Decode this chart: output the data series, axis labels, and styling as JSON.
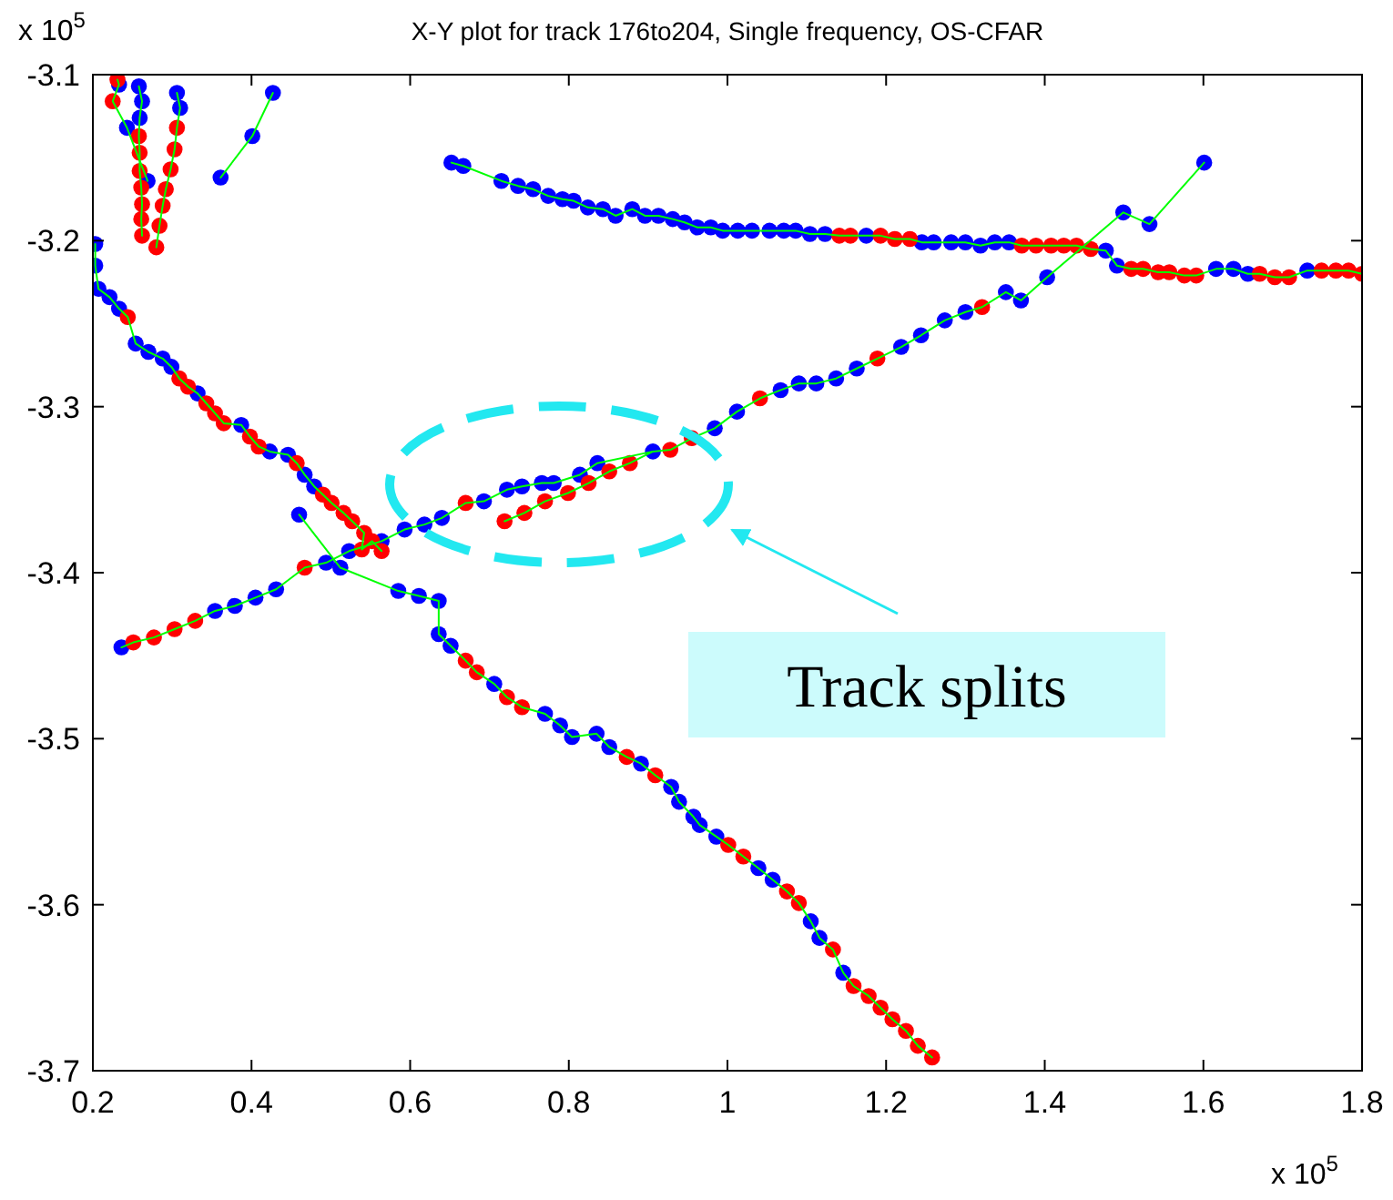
{
  "chart_data": {
    "type": "line",
    "title": "X-Y plot for track 176to204, Single frequency, OS-CFAR",
    "xlim": [
      0.2,
      1.8
    ],
    "xticks": [
      0.2,
      0.4,
      0.6,
      0.8,
      1,
      1.2,
      1.4,
      1.6,
      1.8
    ],
    "ylim": [
      -3.7,
      -3.1
    ],
    "yticks": [
      -3.7,
      -3.6,
      -3.5,
      -3.4,
      -3.3,
      -3.2,
      -3.1
    ],
    "grid": false,
    "marker": "none",
    "line_style": "solid",
    "annotations": [
      "x 10$^{5}$",
      "x 10$^{5}$",
      "Track splits"
    ],
    "series": [
      {
        "color": "#00ff00",
        "x": [
          0.231,
          0.233,
          0.225,
          0.243,
          0.269
        ],
        "values": [
          -3.103,
          -3.106,
          -3.116,
          -3.132,
          -3.164
        ]
      },
      {
        "color": "#00ff00",
        "x": [
          0.258,
          0.262,
          0.259,
          0.258,
          0.259,
          0.259,
          0.261,
          0.262,
          0.261,
          0.262
        ],
        "values": [
          -3.107,
          -3.116,
          -3.126,
          -3.137,
          -3.147,
          -3.158,
          -3.168,
          -3.178,
          -3.187,
          -3.197
        ]
      },
      {
        "color": "#00ff00",
        "x": [
          0.306,
          0.31,
          0.306,
          0.303,
          0.298,
          0.292,
          0.288,
          0.284,
          0.28
        ],
        "values": [
          -3.111,
          -3.12,
          -3.132,
          -3.145,
          -3.157,
          -3.169,
          -3.179,
          -3.191,
          -3.204
        ]
      },
      {
        "color": "#00ff00",
        "x": [
          0.427,
          0.401,
          0.361
        ],
        "values": [
          -3.111,
          -3.137,
          -3.162
        ]
      },
      {
        "color": "#00ff00",
        "x": [
          0.652,
          0.667,
          0.715,
          0.736,
          0.755,
          0.774,
          0.792,
          0.806,
          0.824,
          0.843,
          0.859,
          0.88,
          0.896,
          0.913,
          0.931,
          0.946,
          0.962,
          0.979,
          0.994,
          1.013,
          1.031,
          1.053,
          1.071,
          1.086,
          1.104,
          1.123,
          1.141,
          1.155,
          1.175,
          1.193,
          1.211,
          1.23,
          1.245,
          1.26,
          1.282,
          1.3,
          1.319,
          1.337,
          1.355,
          1.371,
          1.389,
          1.408,
          1.424,
          1.44,
          1.458,
          1.477,
          1.491,
          1.509,
          1.524,
          1.543,
          1.557,
          1.576,
          1.591,
          1.616,
          1.638,
          1.656,
          1.671,
          1.69,
          1.708,
          1.731,
          1.749,
          1.767,
          1.783,
          1.8
        ],
        "values": [
          -3.153,
          -3.155,
          -3.164,
          -3.167,
          -3.169,
          -3.173,
          -3.175,
          -3.176,
          -3.18,
          -3.181,
          -3.185,
          -3.181,
          -3.185,
          -3.185,
          -3.187,
          -3.189,
          -3.192,
          -3.192,
          -3.194,
          -3.194,
          -3.194,
          -3.194,
          -3.194,
          -3.194,
          -3.196,
          -3.196,
          -3.197,
          -3.197,
          -3.197,
          -3.197,
          -3.199,
          -3.199,
          -3.201,
          -3.201,
          -3.201,
          -3.201,
          -3.203,
          -3.201,
          -3.201,
          -3.203,
          -3.203,
          -3.203,
          -3.203,
          -3.203,
          -3.205,
          -3.206,
          -3.215,
          -3.217,
          -3.217,
          -3.219,
          -3.219,
          -3.221,
          -3.221,
          -3.217,
          -3.217,
          -3.22,
          -3.22,
          -3.222,
          -3.222,
          -3.218,
          -3.218,
          -3.218,
          -3.218,
          -3.22
        ]
      },
      {
        "color": "#00ff00",
        "x": [
          0.236,
          0.251,
          0.277,
          0.303,
          0.329,
          0.354,
          0.379,
          0.405,
          0.431,
          0.467,
          0.494,
          0.523,
          0.564,
          0.593,
          0.618,
          0.64,
          0.67,
          0.693,
          0.722,
          0.741,
          0.766,
          0.781,
          0.814,
          0.836,
          0.906,
          0.928,
          0.955,
          0.984,
          1.012,
          1.041,
          1.067,
          1.09,
          1.112,
          1.137,
          1.163,
          1.189,
          1.219,
          1.244,
          1.274,
          1.3,
          1.321,
          1.351,
          1.37,
          1.403,
          1.499,
          1.532,
          1.601
        ],
        "values": [
          -3.445,
          -3.442,
          -3.439,
          -3.434,
          -3.429,
          -3.423,
          -3.42,
          -3.415,
          -3.41,
          -3.397,
          -3.394,
          -3.387,
          -3.381,
          -3.374,
          -3.371,
          -3.367,
          -3.358,
          -3.357,
          -3.35,
          -3.348,
          -3.346,
          -3.346,
          -3.341,
          -3.334,
          -3.327,
          -3.326,
          -3.319,
          -3.313,
          -3.303,
          -3.295,
          -3.29,
          -3.286,
          -3.286,
          -3.283,
          -3.277,
          -3.271,
          -3.264,
          -3.257,
          -3.248,
          -3.243,
          -3.24,
          -3.231,
          -3.236,
          -3.222,
          -3.183,
          -3.19,
          -3.153
        ]
      },
      {
        "color": "#00ff00",
        "x": [
          0.719,
          0.744,
          0.77,
          0.799,
          0.825,
          0.851,
          0.877,
          0.906
        ],
        "values": [
          -3.369,
          -3.364,
          -3.357,
          -3.352,
          -3.346,
          -3.339,
          -3.334,
          -3.327
        ]
      },
      {
        "color": "#00ff00",
        "x": [
          0.203,
          0.203,
          0.207,
          0.221,
          0.233,
          0.244,
          0.254,
          0.27,
          0.288,
          0.299,
          0.309,
          0.32,
          0.332,
          0.343,
          0.354,
          0.365,
          0.387,
          0.398,
          0.409,
          0.423,
          0.446,
          0.457,
          0.467,
          0.479,
          0.49,
          0.501,
          0.516,
          0.527,
          0.542,
          0.539,
          0.552,
          0.564
        ],
        "values": [
          -3.202,
          -3.215,
          -3.229,
          -3.234,
          -3.241,
          -3.246,
          -3.262,
          -3.267,
          -3.271,
          -3.276,
          -3.283,
          -3.288,
          -3.292,
          -3.298,
          -3.304,
          -3.31,
          -3.311,
          -3.318,
          -3.324,
          -3.327,
          -3.329,
          -3.334,
          -3.341,
          -3.348,
          -3.353,
          -3.358,
          -3.364,
          -3.369,
          -3.376,
          -3.386,
          -3.381,
          -3.387
        ]
      },
      {
        "color": "#00ff00",
        "x": [
          0.46,
          0.512,
          0.585,
          0.611,
          0.636,
          0.636,
          0.651,
          0.67,
          0.684,
          0.706,
          0.722,
          0.741,
          0.77,
          0.789,
          0.804,
          0.835,
          0.851,
          0.873,
          0.891,
          0.909,
          0.929,
          0.939,
          0.957,
          0.965,
          0.986,
          1.001,
          1.02,
          1.039,
          1.057,
          1.075,
          1.09,
          1.105,
          1.116,
          1.133,
          1.146,
          1.159,
          1.178,
          1.193,
          1.208,
          1.225,
          1.24,
          1.258
        ],
        "values": [
          -3.365,
          -3.397,
          -3.411,
          -3.414,
          -3.417,
          -3.437,
          -3.444,
          -3.453,
          -3.46,
          -3.467,
          -3.475,
          -3.481,
          -3.485,
          -3.492,
          -3.499,
          -3.497,
          -3.505,
          -3.511,
          -3.515,
          -3.522,
          -3.529,
          -3.538,
          -3.547,
          -3.552,
          -3.559,
          -3.564,
          -3.571,
          -3.578,
          -3.585,
          -3.592,
          -3.599,
          -3.61,
          -3.62,
          -3.627,
          -3.641,
          -3.649,
          -3.655,
          -3.662,
          -3.669,
          -3.676,
          -3.685,
          -3.692
        ]
      },
      {
        "type": "scatter",
        "marker": "circle",
        "color": "#0000ff",
        "x": [
          0.233,
          0.243,
          0.269,
          0.258,
          0.262,
          0.259,
          0.306,
          0.31,
          0.427,
          0.401,
          0.361,
          0.652,
          0.667,
          0.715,
          0.736,
          0.755,
          0.774,
          0.792,
          0.806,
          0.824,
          0.843,
          0.859,
          0.88,
          0.896,
          0.913,
          0.931,
          0.946,
          0.962,
          0.979,
          0.994,
          1.013,
          1.031,
          1.053,
          1.071,
          1.086,
          1.104,
          1.123,
          1.175,
          1.245,
          1.26,
          1.282,
          1.3,
          1.319,
          1.337,
          1.355,
          1.477,
          1.491,
          1.616,
          1.638,
          1.656,
          1.731,
          0.236,
          0.354,
          0.379,
          0.405,
          0.431,
          0.494,
          0.523,
          0.564,
          0.593,
          0.618,
          0.64,
          0.693,
          0.722,
          0.741,
          0.766,
          0.781,
          0.814,
          0.836,
          0.906,
          0.984,
          1.012,
          1.067,
          1.09,
          1.112,
          1.137,
          1.163,
          1.219,
          1.244,
          1.274,
          1.3,
          1.351,
          1.37,
          1.403,
          1.499,
          1.532,
          1.601,
          0.203,
          0.203,
          0.207,
          0.221,
          0.233,
          0.254,
          0.27,
          0.288,
          0.299,
          0.332,
          0.387,
          0.423,
          0.446,
          0.467,
          0.479,
          0.46,
          0.512,
          0.585,
          0.611,
          0.636,
          0.636,
          0.651,
          0.706,
          0.77,
          0.789,
          0.804,
          0.835,
          0.851,
          0.891,
          0.929,
          0.939,
          0.957,
          0.965,
          0.986,
          1.039,
          1.057,
          1.105,
          1.116,
          1.146
        ],
        "values": [
          -3.106,
          -3.132,
          -3.164,
          -3.107,
          -3.116,
          -3.126,
          -3.111,
          -3.12,
          -3.111,
          -3.137,
          -3.162,
          -3.153,
          -3.155,
          -3.164,
          -3.167,
          -3.169,
          -3.173,
          -3.175,
          -3.176,
          -3.18,
          -3.181,
          -3.185,
          -3.181,
          -3.185,
          -3.185,
          -3.187,
          -3.189,
          -3.192,
          -3.192,
          -3.194,
          -3.194,
          -3.194,
          -3.194,
          -3.194,
          -3.194,
          -3.196,
          -3.196,
          -3.197,
          -3.201,
          -3.201,
          -3.201,
          -3.201,
          -3.203,
          -3.201,
          -3.201,
          -3.206,
          -3.215,
          -3.217,
          -3.217,
          -3.22,
          -3.218,
          -3.445,
          -3.423,
          -3.42,
          -3.415,
          -3.41,
          -3.394,
          -3.387,
          -3.381,
          -3.374,
          -3.371,
          -3.367,
          -3.357,
          -3.35,
          -3.348,
          -3.346,
          -3.346,
          -3.341,
          -3.334,
          -3.327,
          -3.313,
          -3.303,
          -3.29,
          -3.286,
          -3.286,
          -3.283,
          -3.277,
          -3.264,
          -3.257,
          -3.248,
          -3.243,
          -3.231,
          -3.236,
          -3.222,
          -3.183,
          -3.19,
          -3.153,
          -3.202,
          -3.215,
          -3.229,
          -3.234,
          -3.241,
          -3.262,
          -3.267,
          -3.271,
          -3.276,
          -3.292,
          -3.311,
          -3.327,
          -3.329,
          -3.341,
          -3.348,
          -3.365,
          -3.397,
          -3.411,
          -3.414,
          -3.417,
          -3.437,
          -3.444,
          -3.467,
          -3.485,
          -3.492,
          -3.499,
          -3.497,
          -3.505,
          -3.515,
          -3.529,
          -3.538,
          -3.547,
          -3.552,
          -3.559,
          -3.578,
          -3.585,
          -3.61,
          -3.62,
          -3.641
        ]
      },
      {
        "type": "scatter",
        "marker": "circle",
        "color": "#ff0000",
        "x": [
          0.231,
          0.225,
          0.258,
          0.259,
          0.259,
          0.261,
          0.262,
          0.261,
          0.262,
          0.306,
          0.303,
          0.298,
          0.292,
          0.288,
          0.284,
          0.28,
          1.141,
          1.155,
          1.193,
          1.211,
          1.23,
          1.371,
          1.389,
          1.408,
          1.424,
          1.44,
          1.458,
          1.509,
          1.524,
          1.543,
          1.557,
          1.576,
          1.591,
          1.671,
          1.69,
          1.708,
          1.749,
          1.767,
          1.783,
          1.8,
          0.251,
          0.277,
          0.303,
          0.329,
          0.467,
          0.67,
          0.928,
          0.955,
          1.041,
          1.189,
          1.321,
          0.719,
          0.744,
          0.77,
          0.799,
          0.825,
          0.851,
          0.877,
          0.244,
          0.309,
          0.32,
          0.343,
          0.354,
          0.365,
          0.398,
          0.409,
          0.457,
          0.49,
          0.501,
          0.516,
          0.527,
          0.542,
          0.539,
          0.552,
          0.564,
          0.67,
          0.684,
          0.722,
          0.741,
          0.873,
          0.909,
          1.001,
          1.02,
          1.075,
          1.09,
          1.133,
          1.159,
          1.178,
          1.193,
          1.208,
          1.225,
          1.24,
          1.258
        ],
        "values": [
          -3.103,
          -3.116,
          -3.137,
          -3.147,
          -3.158,
          -3.168,
          -3.178,
          -3.187,
          -3.197,
          -3.132,
          -3.145,
          -3.157,
          -3.169,
          -3.179,
          -3.191,
          -3.204,
          -3.197,
          -3.197,
          -3.197,
          -3.199,
          -3.199,
          -3.203,
          -3.203,
          -3.203,
          -3.203,
          -3.203,
          -3.205,
          -3.217,
          -3.217,
          -3.219,
          -3.219,
          -3.221,
          -3.221,
          -3.22,
          -3.222,
          -3.222,
          -3.218,
          -3.218,
          -3.218,
          -3.22,
          -3.442,
          -3.439,
          -3.434,
          -3.429,
          -3.397,
          -3.358,
          -3.326,
          -3.319,
          -3.295,
          -3.271,
          -3.24,
          -3.369,
          -3.364,
          -3.357,
          -3.352,
          -3.346,
          -3.339,
          -3.334,
          -3.246,
          -3.283,
          -3.288,
          -3.298,
          -3.304,
          -3.31,
          -3.318,
          -3.324,
          -3.334,
          -3.353,
          -3.358,
          -3.364,
          -3.369,
          -3.376,
          -3.386,
          -3.381,
          -3.387,
          -3.453,
          -3.46,
          -3.475,
          -3.481,
          -3.511,
          -3.522,
          -3.564,
          -3.571,
          -3.592,
          -3.599,
          -3.627,
          -3.649,
          -3.655,
          -3.662,
          -3.669,
          -3.676,
          -3.685,
          -3.692
        ]
      }
    ]
  }
}
